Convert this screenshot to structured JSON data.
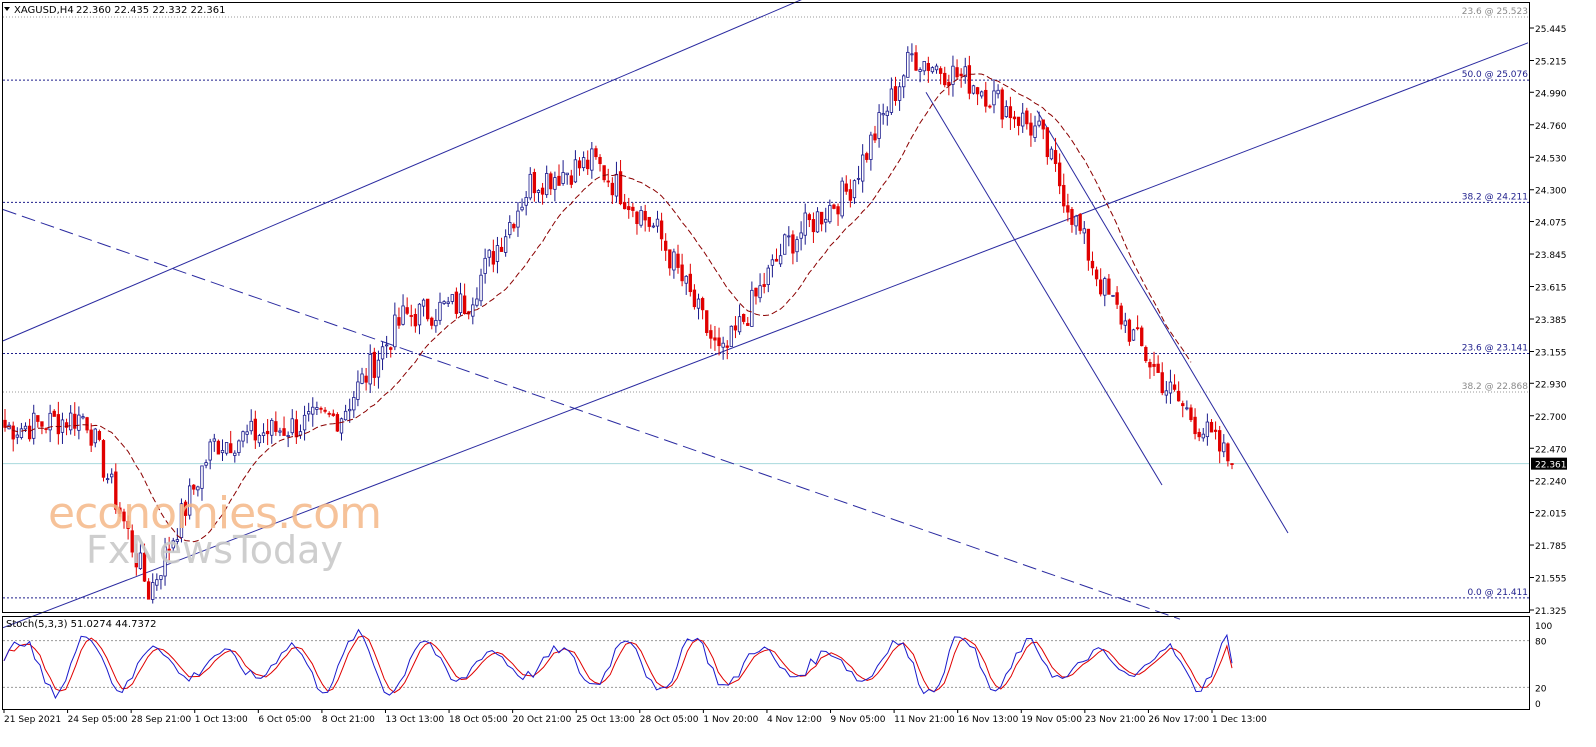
{
  "header": {
    "symbol": "XAGUSD,H4",
    "ohlc": "22.360 22.435 22.332 22.361"
  },
  "watermark": {
    "brand": "economies.com",
    "subbrand": "FxNewsToday"
  },
  "chart_data": [
    {
      "type": "candlestick",
      "symbol": "XAGUSD",
      "timeframe": "H4",
      "ylim": [
        21.3,
        25.6
      ],
      "y_ticks": [
        "25.445",
        "25.215",
        "24.990",
        "24.760",
        "24.530",
        "24.300",
        "24.075",
        "23.845",
        "23.615",
        "23.385",
        "23.155",
        "22.930",
        "22.700",
        "22.470",
        "22.240",
        "22.015",
        "21.785",
        "21.555",
        "21.325"
      ],
      "x_ticks": [
        "21 Sep 2021",
        "24 Sep 05:00",
        "28 Sep 21:00",
        "1 Oct 13:00",
        "6 Oct 05:00",
        "8 Oct 21:00",
        "13 Oct 13:00",
        "18 Oct 05:00",
        "20 Oct 21:00",
        "25 Oct 13:00",
        "28 Oct 05:00",
        "1 Nov 20:00",
        "4 Nov 12:00",
        "9 Nov 05:00",
        "11 Nov 21:00",
        "16 Nov 13:00",
        "19 Nov 05:00",
        "23 Nov 21:00",
        "26 Nov 17:00",
        "1 Dec 13:00"
      ],
      "current_price": "22.361",
      "current_value": 22.361,
      "key_closes": [
        {
          "x": "21 Sep 2021",
          "y": 22.62
        },
        {
          "x": "24 Sep 05:00",
          "y": 22.7
        },
        {
          "x": "28 Sep 21:00",
          "y": 21.45
        },
        {
          "x": "1 Oct 13:00",
          "y": 22.5
        },
        {
          "x": "6 Oct 05:00",
          "y": 22.6
        },
        {
          "x": "8 Oct 21:00",
          "y": 22.7
        },
        {
          "x": "13 Oct 13:00",
          "y": 23.4
        },
        {
          "x": "18 Oct 05:00",
          "y": 23.5
        },
        {
          "x": "20 Oct 21:00",
          "y": 24.35
        },
        {
          "x": "25 Oct 13:00",
          "y": 24.5
        },
        {
          "x": "28 Oct 05:00",
          "y": 24.0
        },
        {
          "x": "1 Nov 20:00",
          "y": 23.1
        },
        {
          "x": "4 Nov 12:00",
          "y": 23.9
        },
        {
          "x": "9 Nov 05:00",
          "y": 24.3
        },
        {
          "x": "11 Nov 21:00",
          "y": 25.25
        },
        {
          "x": "16 Nov 13:00",
          "y": 25.05
        },
        {
          "x": "19 Nov 05:00",
          "y": 24.7
        },
        {
          "x": "23 Nov 21:00",
          "y": 23.6
        },
        {
          "x": "26 Nov 17:00",
          "y": 22.9
        },
        {
          "x": "1 Dec 13:00",
          "y": 22.36
        }
      ],
      "moving_average_style": "dashed dark red",
      "fibonacci_levels": [
        {
          "label": "23.6 @ 25.523",
          "value": 25.523,
          "style": "dotted grey"
        },
        {
          "label": "50.0 @ 25.076",
          "value": 25.076,
          "style": "dotted blue"
        },
        {
          "label": "38.2 @ 24.211",
          "value": 24.211,
          "style": "dotted blue"
        },
        {
          "label": "23.6 @ 23.141",
          "value": 23.141,
          "style": "dotted blue"
        },
        {
          "label": "38.2 @ 22.868",
          "value": 22.868,
          "style": "dotted grey"
        },
        {
          "label": "0.0 @ 21.411",
          "value": 21.411,
          "style": "dotted blue"
        }
      ],
      "colors": {
        "up": "#1a1a8c",
        "down": "#e00000",
        "ma": "#8b0000",
        "trend": "#2a2aa0",
        "current_line": "#a8dadd"
      }
    },
    {
      "type": "line",
      "indicator": "Stoch(5,3,3)",
      "label": "Stoch(5,3,3) 51.0274 44.7372",
      "values_shown": [
        51.0274,
        44.7372
      ],
      "ylim": [
        0,
        100
      ],
      "y_ticks": [
        "100",
        "80",
        "20",
        "0"
      ],
      "levels": [
        80,
        20
      ],
      "colors": {
        "main": "#1a1acc",
        "signal": "#e00000"
      }
    }
  ]
}
